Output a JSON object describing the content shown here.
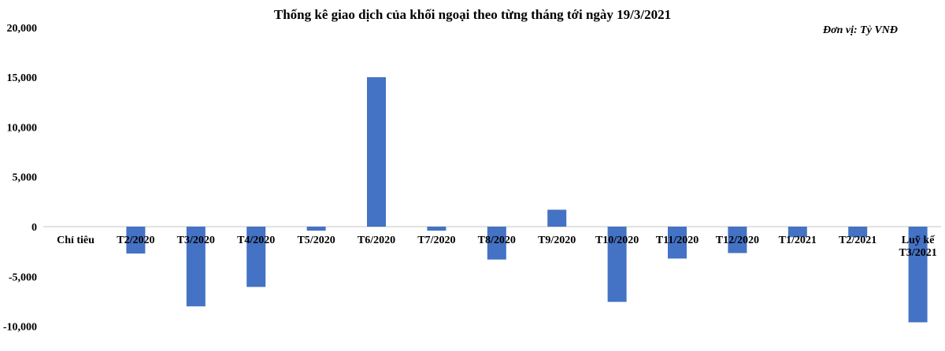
{
  "chart_data": {
    "type": "bar",
    "title": "Thống kê giao dịch của khối ngoại theo từng tháng tới ngày 19/3/2021",
    "unit_note": "Đơn vị: Tỷ VNĐ",
    "categories": [
      "Chỉ tiêu",
      "T2/2020",
      "T3/2020",
      "T4/2020",
      "T5/2020",
      "T6/2020",
      "T7/2020",
      "T8/2020",
      "T9/2020",
      "T10/2020",
      "T11/2020",
      "T12/2020",
      "T1/2021",
      "T2/2021",
      "Luỹ kế T3/2021"
    ],
    "values": [
      null,
      -2700,
      -8000,
      -6050,
      -400,
      15000,
      -400,
      -3300,
      1700,
      -7550,
      -3200,
      -2650,
      -1050,
      -1050,
      -9600
    ],
    "ylim": [
      -10000,
      20000
    ],
    "yticks": [
      20000,
      15000,
      10000,
      5000,
      0,
      -5000,
      -10000
    ],
    "ytick_labels": [
      "20,000",
      "15,000",
      "10,000",
      "5,000",
      "0",
      "-5,000",
      "-10,000"
    ],
    "bar_color": "#4472C4",
    "grid": false,
    "legend": "none"
  }
}
